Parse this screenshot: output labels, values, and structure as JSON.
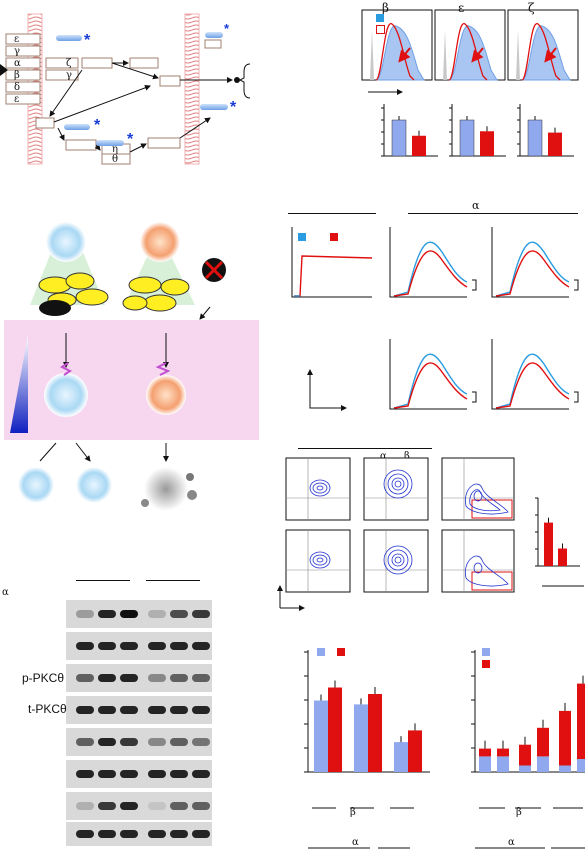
{
  "pathway": {
    "star": "*",
    "greek": [
      "ε",
      "γ",
      "α",
      "β",
      "δ",
      "ε",
      "ζ",
      "γ",
      "η",
      "θ"
    ]
  },
  "histograms": {
    "titles": [
      "β",
      "ε",
      "ζ"
    ],
    "colors": {
      "blue": "#6fa0e6",
      "red": "#e01010",
      "fill": "#a9c6f2",
      "grey": "#c8c8c8"
    }
  },
  "bars_top": {
    "groups": [
      {
        "blue": 0.8,
        "red": 0.45
      },
      {
        "blue": 0.8,
        "red": 0.55
      },
      {
        "blue": 0.8,
        "red": 0.52
      }
    ]
  },
  "calcium": {
    "header": "α"
  },
  "flow": {
    "header_alpha": "α",
    "header_beta": "β"
  },
  "small_bar": {
    "values": [
      0.62,
      0.25
    ]
  },
  "western": {
    "row_label_left": "α",
    "rows": [
      "",
      "",
      "p-PKCθ",
      "t-PKCθ",
      "",
      "",
      "",
      ""
    ]
  },
  "bars_bottom_left": {
    "values": [
      [
        0.55,
        0.65
      ],
      [
        0.52,
        0.6
      ],
      [
        0.23,
        0.32
      ]
    ],
    "xlabel_mid": "β",
    "xlabel_bottom": "α"
  },
  "bars_bottom_right": {
    "stacked": [
      [
        0.12,
        0.06
      ],
      [
        0.12,
        0.06
      ],
      [
        0.05,
        0.16
      ],
      [
        0.12,
        0.22
      ],
      [
        0.05,
        0.42
      ],
      [
        0.1,
        0.58
      ]
    ],
    "xlabel_mid": "β",
    "xlabel_bottom": "α"
  }
}
